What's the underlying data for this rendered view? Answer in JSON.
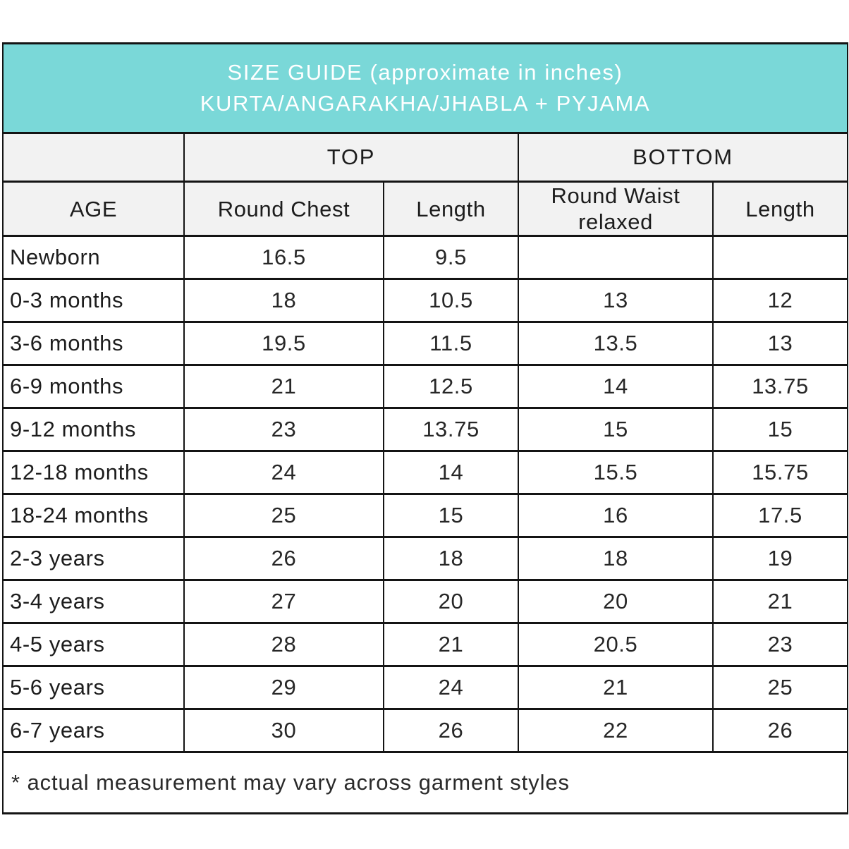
{
  "title": {
    "line1": "SIZE GUIDE (approximate in inches)",
    "line2": "KURTA/ANGARAKHA/JHABLA + PYJAMA"
  },
  "colors": {
    "header_teal": "#7ad8d8",
    "header_text": "#ffffff",
    "subheader_bg": "#f2f2f2",
    "border": "#141414",
    "text": "#1d1d1d"
  },
  "table": {
    "group_headers": {
      "top": "TOP",
      "bottom": "BOTTOM"
    },
    "column_headers": {
      "age": "AGE",
      "top_round_chest": "Round Chest",
      "top_length": "Length",
      "bottom_round_waist": "Round Waist relaxed",
      "bottom_length": "Length"
    },
    "rows": [
      {
        "age": "Newborn",
        "values": [
          "16.5",
          "9.5",
          "",
          ""
        ]
      },
      {
        "age": "0-3 months",
        "values": [
          "18",
          "10.5",
          "13",
          "12"
        ]
      },
      {
        "age": "3-6 months",
        "values": [
          "19.5",
          "11.5",
          "13.5",
          "13"
        ]
      },
      {
        "age": "6-9 months",
        "values": [
          "21",
          "12.5",
          "14",
          "13.75"
        ]
      },
      {
        "age": "9-12 months",
        "values": [
          "23",
          "13.75",
          "15",
          "15"
        ]
      },
      {
        "age": "12-18 months",
        "values": [
          "24",
          "14",
          "15.5",
          "15.75"
        ]
      },
      {
        "age": "18-24 months",
        "values": [
          "25",
          "15",
          "16",
          "17.5"
        ]
      },
      {
        "age": "2-3 years",
        "values": [
          "26",
          "18",
          "18",
          "19"
        ]
      },
      {
        "age": "3-4 years",
        "values": [
          "27",
          "20",
          "20",
          "21"
        ]
      },
      {
        "age": "4-5 years",
        "values": [
          "28",
          "21",
          "20.5",
          "23"
        ]
      },
      {
        "age": "5-6 years",
        "values": [
          "29",
          "24",
          "21",
          "25"
        ]
      },
      {
        "age": "6-7 years",
        "values": [
          "30",
          "26",
          "22",
          "26"
        ]
      }
    ]
  },
  "footnote": "* actual measurement may vary across garment styles"
}
